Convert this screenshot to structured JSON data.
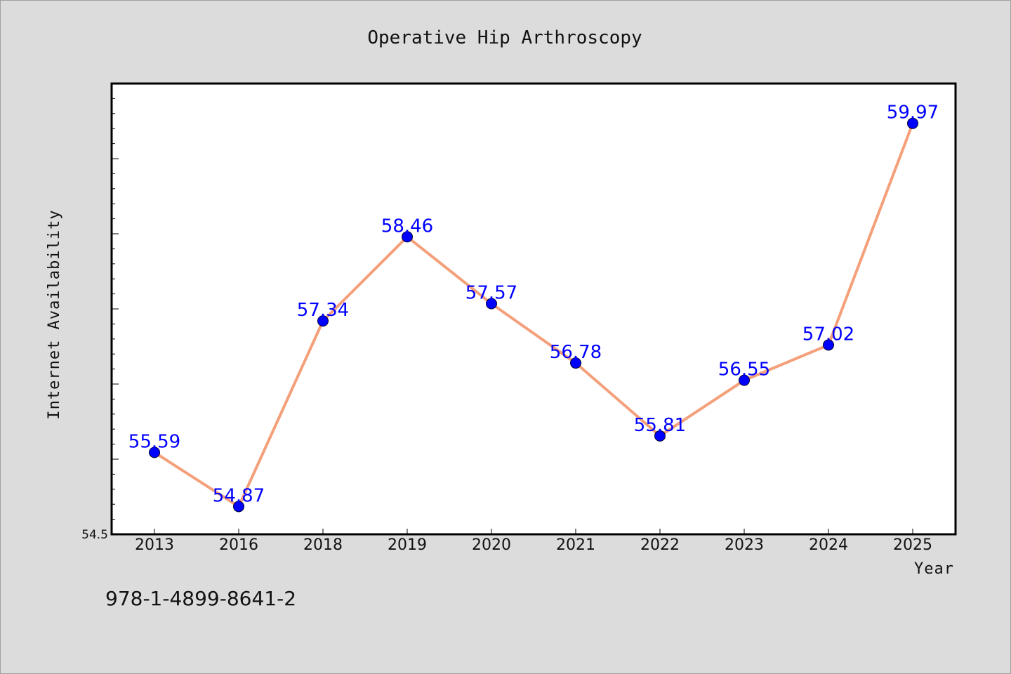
{
  "chart_data": {
    "type": "line",
    "title": "Operative Hip Arthroscopy",
    "xlabel": "Year",
    "ylabel": "Internet Availability",
    "categories": [
      "2013",
      "2016",
      "2018",
      "2019",
      "2020",
      "2021",
      "2022",
      "2023",
      "2024",
      "2025"
    ],
    "values": [
      55.59,
      54.87,
      57.34,
      58.46,
      57.57,
      56.78,
      55.81,
      56.55,
      57.02,
      59.97
    ],
    "data_labels": [
      "55.59",
      "54.87",
      "57.34",
      "58.46",
      "57.57",
      "56.78",
      "55.81",
      "56.55",
      "57.02",
      "59.97"
    ],
    "ylim": [
      54.5,
      60.5
    ],
    "ytick_labels": [
      "54.5"
    ],
    "grid": false,
    "colors": {
      "line": "#f4a07a",
      "marker": "#0000ff",
      "label": "#0000ff",
      "background": "#dcdcdc",
      "plot_background": "#ffffff"
    }
  },
  "footnote": "978-1-4899-8641-2"
}
